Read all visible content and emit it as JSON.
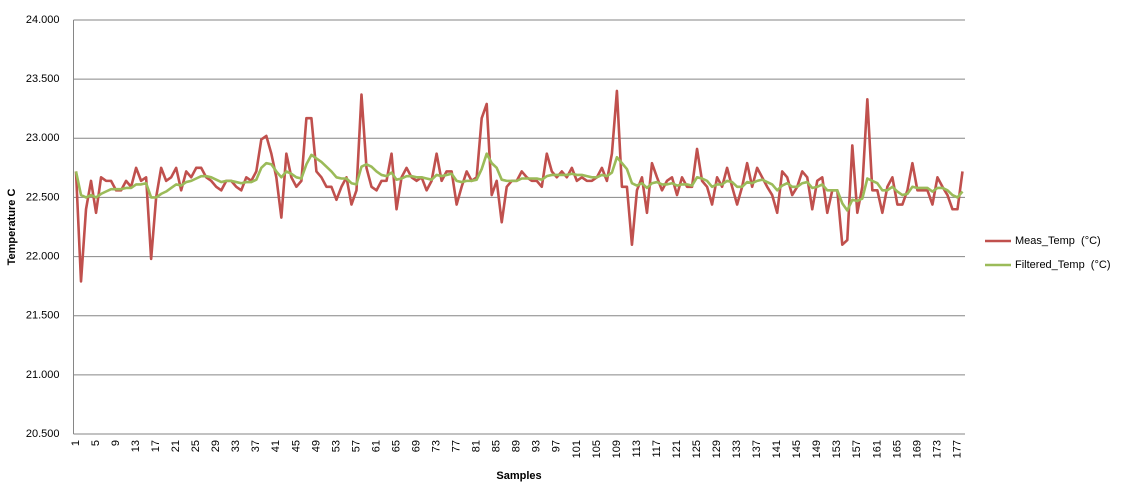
{
  "chart_data": {
    "type": "line",
    "x_label": "Samples",
    "y_label": "Temperature C",
    "ylim": [
      20.5,
      24
    ],
    "yticks": [
      {
        "value": 20.5,
        "label": "20.500"
      },
      {
        "value": 21,
        "label": "21.000"
      },
      {
        "value": 21.5,
        "label": "21.500"
      },
      {
        "value": 22,
        "label": "22.000"
      },
      {
        "value": 22.5,
        "label": "22.500"
      },
      {
        "value": 23,
        "label": "23.000"
      },
      {
        "value": 23.5,
        "label": "23.500"
      },
      {
        "value": 24,
        "label": "24.000"
      }
    ],
    "grid": true,
    "legend": "right",
    "categories": [
      "1",
      null,
      null,
      null,
      "5",
      null,
      null,
      null,
      "9",
      null,
      null,
      null,
      "13",
      null,
      null,
      null,
      "17",
      null,
      null,
      null,
      "21",
      null,
      null,
      null,
      "25",
      null,
      null,
      null,
      "29",
      null,
      null,
      null,
      "33",
      null,
      null,
      null,
      "37",
      null,
      null,
      null,
      "41",
      null,
      null,
      null,
      "45",
      null,
      null,
      null,
      "49",
      null,
      null,
      null,
      "53",
      null,
      null,
      null,
      "57",
      null,
      null,
      null,
      "61",
      null,
      null,
      null,
      "65",
      null,
      null,
      null,
      "69",
      null,
      null,
      null,
      "73",
      null,
      null,
      null,
      "77",
      null,
      null,
      null,
      "81",
      null,
      null,
      null,
      "85",
      null,
      null,
      null,
      "89",
      null,
      null,
      null,
      "93",
      null,
      null,
      null,
      "97",
      null,
      null,
      null,
      "101",
      null,
      null,
      null,
      "105",
      null,
      null,
      null,
      "109",
      null,
      null,
      null,
      "113",
      null,
      null,
      null,
      "117",
      null,
      null,
      null,
      "121",
      null,
      null,
      null,
      "125",
      null,
      null,
      null,
      "129",
      null,
      null,
      null,
      "133",
      null,
      null,
      null,
      "137",
      null,
      null,
      null,
      "141",
      null,
      null,
      null,
      "145",
      null,
      null,
      null,
      "149",
      null,
      null,
      null,
      "153",
      null,
      null,
      null,
      "157",
      null,
      null,
      null,
      "161",
      null,
      null,
      null,
      "165",
      null,
      null,
      null,
      "169",
      null,
      null,
      null,
      "173",
      null,
      null,
      null,
      "177",
      null
    ],
    "series": [
      {
        "name": "Meas_Temp  (°C)",
        "color": "#c0504d",
        "values": [
          22.72,
          21.79,
          22.4,
          22.64,
          22.37,
          22.67,
          22.64,
          22.64,
          22.56,
          22.56,
          22.64,
          22.59,
          22.75,
          22.64,
          22.67,
          21.98,
          22.5,
          22.75,
          22.64,
          22.67,
          22.75,
          22.56,
          22.72,
          22.67,
          22.75,
          22.75,
          22.67,
          22.64,
          22.59,
          22.56,
          22.64,
          22.64,
          22.59,
          22.56,
          22.67,
          22.64,
          22.72,
          22.99,
          23.02,
          22.87,
          22.67,
          22.33,
          22.87,
          22.67,
          22.59,
          22.64,
          23.17,
          23.17,
          22.72,
          22.67,
          22.59,
          22.59,
          22.48,
          22.59,
          22.67,
          22.44,
          22.56,
          23.37,
          22.75,
          22.59,
          22.56,
          22.64,
          22.64,
          22.87,
          22.4,
          22.67,
          22.75,
          22.67,
          22.64,
          22.67,
          22.56,
          22.64,
          22.87,
          22.64,
          22.72,
          22.72,
          22.44,
          22.59,
          22.72,
          22.64,
          22.67,
          23.17,
          23.29,
          22.52,
          22.64,
          22.29,
          22.59,
          22.64,
          22.64,
          22.72,
          22.67,
          22.64,
          22.64,
          22.59,
          22.87,
          22.72,
          22.67,
          22.72,
          22.67,
          22.75,
          22.64,
          22.67,
          22.64,
          22.64,
          22.67,
          22.75,
          22.64,
          22.87,
          23.4,
          22.59,
          22.59,
          22.1,
          22.56,
          22.67,
          22.37,
          22.79,
          22.67,
          22.56,
          22.64,
          22.67,
          22.52,
          22.67,
          22.59,
          22.59,
          22.91,
          22.64,
          22.59,
          22.44,
          22.67,
          22.59,
          22.75,
          22.59,
          22.44,
          22.59,
          22.79,
          22.59,
          22.75,
          22.67,
          22.59,
          22.52,
          22.37,
          22.72,
          22.67,
          22.52,
          22.59,
          22.72,
          22.67,
          22.4,
          22.64,
          22.67,
          22.37,
          22.56,
          22.56,
          22.1,
          22.14,
          22.94,
          22.37,
          22.59,
          23.33,
          22.56,
          22.56,
          22.37,
          22.59,
          22.67,
          22.44,
          22.44,
          22.56,
          22.79,
          22.56,
          22.56,
          22.56,
          22.44,
          22.67,
          22.59,
          22.52,
          22.4,
          22.4,
          22.72
        ]
      },
      {
        "name": "Filtered_Temp  (°C)",
        "color": "#9bbb59",
        "values": [
          22.72,
          22.52,
          22.5,
          22.52,
          22.5,
          22.53,
          22.55,
          22.57,
          22.57,
          22.57,
          22.58,
          22.58,
          22.61,
          22.61,
          22.62,
          22.5,
          22.5,
          22.53,
          22.55,
          22.58,
          22.61,
          22.6,
          22.63,
          22.64,
          22.66,
          22.68,
          22.68,
          22.67,
          22.65,
          22.63,
          22.64,
          22.64,
          22.63,
          22.62,
          22.63,
          22.63,
          22.65,
          22.75,
          22.79,
          22.78,
          22.72,
          22.67,
          22.72,
          22.7,
          22.67,
          22.66,
          22.78,
          22.86,
          22.83,
          22.8,
          22.76,
          22.72,
          22.67,
          22.66,
          22.66,
          22.62,
          22.61,
          22.76,
          22.78,
          22.76,
          22.72,
          22.69,
          22.68,
          22.71,
          22.65,
          22.66,
          22.68,
          22.68,
          22.67,
          22.67,
          22.66,
          22.65,
          22.69,
          22.68,
          22.69,
          22.7,
          22.64,
          22.63,
          22.64,
          22.64,
          22.65,
          22.74,
          22.87,
          22.79,
          22.75,
          22.65,
          22.64,
          22.64,
          22.64,
          22.66,
          22.66,
          22.66,
          22.66,
          22.65,
          22.68,
          22.69,
          22.69,
          22.69,
          22.69,
          22.7,
          22.69,
          22.69,
          22.68,
          22.67,
          22.67,
          22.69,
          22.68,
          22.71,
          22.84,
          22.79,
          22.74,
          22.62,
          22.6,
          22.62,
          22.58,
          22.62,
          22.63,
          22.61,
          22.61,
          22.62,
          22.6,
          22.61,
          22.61,
          22.6,
          22.67,
          22.66,
          22.64,
          22.59,
          22.61,
          22.61,
          22.64,
          22.63,
          22.59,
          22.59,
          22.63,
          22.62,
          22.64,
          22.65,
          22.63,
          22.61,
          22.56,
          22.6,
          22.62,
          22.59,
          22.59,
          22.62,
          22.63,
          22.58,
          22.59,
          22.61,
          22.56,
          22.56,
          22.56,
          22.45,
          22.39,
          22.48,
          22.47,
          22.49,
          22.66,
          22.64,
          22.62,
          22.56,
          22.56,
          22.59,
          22.55,
          22.52,
          22.53,
          22.59,
          22.58,
          22.58,
          22.58,
          22.55,
          22.58,
          22.58,
          22.56,
          22.52,
          22.5,
          22.55
        ]
      }
    ]
  }
}
